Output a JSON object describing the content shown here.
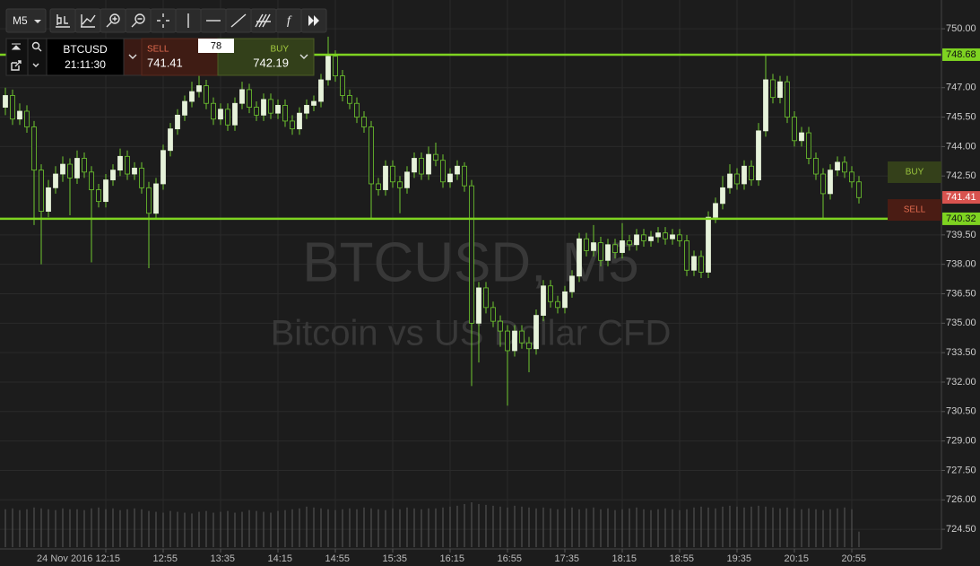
{
  "chart_data": {
    "type": "candlestick",
    "title": "BTCUSD, M5",
    "subtitle": "Bitcoin vs US Dollar CFD",
    "ylim": [
      723.5,
      751.1
    ],
    "yticks": [
      {
        "value": 750,
        "label": "750.00"
      },
      {
        "value": 747,
        "label": "747.00"
      },
      {
        "value": 745.5,
        "label": "745.50"
      },
      {
        "value": 744,
        "label": "744.00"
      },
      {
        "value": 742.5,
        "label": "742.50"
      },
      {
        "value": 739.5,
        "label": "739.50"
      },
      {
        "value": 738,
        "label": "738.00"
      },
      {
        "value": 736.5,
        "label": "736.50"
      },
      {
        "value": 735,
        "label": "735.00"
      },
      {
        "value": 733.5,
        "label": "733.50"
      },
      {
        "value": 732,
        "label": "732.00"
      },
      {
        "value": 730.5,
        "label": "730.50"
      },
      {
        "value": 729,
        "label": "729.00"
      },
      {
        "value": 727.5,
        "label": "727.50"
      },
      {
        "value": 726,
        "label": "726.00"
      },
      {
        "value": 724.5,
        "label": "724.50"
      }
    ],
    "xticks": [
      {
        "value": 14,
        "label": "24 Nov 2016 12:15"
      },
      {
        "value": 22,
        "label": "12:55"
      },
      {
        "value": 30,
        "label": "13:35"
      },
      {
        "value": 38,
        "label": "14:15"
      },
      {
        "value": 46,
        "label": "14:55"
      },
      {
        "value": 54,
        "label": "15:35"
      },
      {
        "value": 62,
        "label": "16:15"
      },
      {
        "value": 70,
        "label": "16:55"
      },
      {
        "value": 78,
        "label": "17:35"
      },
      {
        "value": 86,
        "label": "18:15"
      },
      {
        "value": 94,
        "label": "18:55"
      },
      {
        "value": 102,
        "label": "19:35"
      },
      {
        "value": 110,
        "label": "20:15"
      },
      {
        "value": 118,
        "label": "20:55"
      }
    ],
    "grid": true,
    "up_color": "#e6f2da",
    "down_color": "#1c1c1c",
    "wick_color": "#6fc92f",
    "level_color": "#7ed321",
    "volume_color": "#5a5a5a",
    "levels": [
      748.68,
      740.32
    ],
    "last_price": 741.41,
    "buy_label": "BUY",
    "sell_label": "SELL",
    "ohlc": [
      [
        746.0,
        747.0,
        745.6,
        746.6
      ],
      [
        746.6,
        746.9,
        745.1,
        745.4
      ],
      [
        745.4,
        746.2,
        745.1,
        745.8
      ],
      [
        745.8,
        746.1,
        744.7,
        745.0
      ],
      [
        745.0,
        745.3,
        740.0,
        742.8
      ],
      [
        742.8,
        743.1,
        738.0,
        740.7
      ],
      [
        740.7,
        742.3,
        740.4,
        741.9
      ],
      [
        741.9,
        743.0,
        741.6,
        742.6
      ],
      [
        742.6,
        743.5,
        742.2,
        743.1
      ],
      [
        743.1,
        743.4,
        740.5,
        742.4
      ],
      [
        742.4,
        743.8,
        742.1,
        743.4
      ],
      [
        743.4,
        743.7,
        742.4,
        742.7
      ],
      [
        742.7,
        743.0,
        738.1,
        741.8
      ],
      [
        741.8,
        742.1,
        740.9,
        741.2
      ],
      [
        741.2,
        742.6,
        740.9,
        742.3
      ],
      [
        742.3,
        743.1,
        742.0,
        742.8
      ],
      [
        742.8,
        743.9,
        742.5,
        743.5
      ],
      [
        743.5,
        743.8,
        742.3,
        742.6
      ],
      [
        742.6,
        743.2,
        742.3,
        742.9
      ],
      [
        742.9,
        743.2,
        741.6,
        741.9
      ],
      [
        741.9,
        742.2,
        737.8,
        740.6
      ],
      [
        740.6,
        742.4,
        740.3,
        742.1
      ],
      [
        742.1,
        744.1,
        741.8,
        743.8
      ],
      [
        743.8,
        745.2,
        743.5,
        744.9
      ],
      [
        744.9,
        745.9,
        744.6,
        745.6
      ],
      [
        745.6,
        746.6,
        745.3,
        746.3
      ],
      [
        746.3,
        747.3,
        746.0,
        746.8
      ],
      [
        746.8,
        747.6,
        746.5,
        747.1
      ],
      [
        747.1,
        747.4,
        745.9,
        746.2
      ],
      [
        746.2,
        746.5,
        745.1,
        745.4
      ],
      [
        745.4,
        746.2,
        745.1,
        745.9
      ],
      [
        745.9,
        746.2,
        744.8,
        745.1
      ],
      [
        745.1,
        746.5,
        744.8,
        746.2
      ],
      [
        746.2,
        747.3,
        745.9,
        746.9
      ],
      [
        746.9,
        747.2,
        745.7,
        746.0
      ],
      [
        746.0,
        746.3,
        745.3,
        745.6
      ],
      [
        745.6,
        746.7,
        745.3,
        746.4
      ],
      [
        746.4,
        746.7,
        745.4,
        745.7
      ],
      [
        745.7,
        746.4,
        745.4,
        746.1
      ],
      [
        746.1,
        746.4,
        745.0,
        745.3
      ],
      [
        745.3,
        745.6,
        744.6,
        744.9
      ],
      [
        744.9,
        746.0,
        744.6,
        745.7
      ],
      [
        745.7,
        746.4,
        745.4,
        746.1
      ],
      [
        746.1,
        746.6,
        745.8,
        746.3
      ],
      [
        746.3,
        747.7,
        746.0,
        747.4
      ],
      [
        747.4,
        749.6,
        747.1,
        748.6
      ],
      [
        748.6,
        748.9,
        747.3,
        747.6
      ],
      [
        747.6,
        747.9,
        746.3,
        746.6
      ],
      [
        746.6,
        746.9,
        745.9,
        746.2
      ],
      [
        746.2,
        746.5,
        745.2,
        745.5
      ],
      [
        745.5,
        745.8,
        744.7,
        745.0
      ],
      [
        745.0,
        745.3,
        740.3,
        742.1
      ],
      [
        742.1,
        742.4,
        741.5,
        741.8
      ],
      [
        741.8,
        743.3,
        741.5,
        743.0
      ],
      [
        743.0,
        743.3,
        741.9,
        742.2
      ],
      [
        742.2,
        742.5,
        740.6,
        741.9
      ],
      [
        741.9,
        743.0,
        741.6,
        742.7
      ],
      [
        742.7,
        743.7,
        742.4,
        743.4
      ],
      [
        743.4,
        743.7,
        742.3,
        742.6
      ],
      [
        742.6,
        744.0,
        742.3,
        743.6
      ],
      [
        743.6,
        744.2,
        743.0,
        743.3
      ],
      [
        743.3,
        743.6,
        741.9,
        742.2
      ],
      [
        742.2,
        742.9,
        741.9,
        742.6
      ],
      [
        742.6,
        743.3,
        742.3,
        743.0
      ],
      [
        743.0,
        743.2,
        741.7,
        742.0
      ],
      [
        742.0,
        742.3,
        731.8,
        735.0
      ],
      [
        735.0,
        737.1,
        733.0,
        736.8
      ],
      [
        736.8,
        737.1,
        735.5,
        735.8
      ],
      [
        735.8,
        736.1,
        734.8,
        735.1
      ],
      [
        735.1,
        735.4,
        733.8,
        734.6
      ],
      [
        734.6,
        734.9,
        730.8,
        733.6
      ],
      [
        733.6,
        734.9,
        733.3,
        734.6
      ],
      [
        734.6,
        734.9,
        733.7,
        734.0
      ],
      [
        734.0,
        734.3,
        732.5,
        733.7
      ],
      [
        733.7,
        735.7,
        733.4,
        735.4
      ],
      [
        735.4,
        737.2,
        735.1,
        736.9
      ],
      [
        736.9,
        737.2,
        735.8,
        736.1
      ],
      [
        736.1,
        736.4,
        735.5,
        735.8
      ],
      [
        735.8,
        736.9,
        735.5,
        736.6
      ],
      [
        736.6,
        737.7,
        736.3,
        737.4
      ],
      [
        737.4,
        739.6,
        737.1,
        739.3
      ],
      [
        739.3,
        739.6,
        738.4,
        738.7
      ],
      [
        738.7,
        740.0,
        738.4,
        739.1
      ],
      [
        739.1,
        739.4,
        737.9,
        738.2
      ],
      [
        738.2,
        739.3,
        737.9,
        739.0
      ],
      [
        739.0,
        739.3,
        738.3,
        738.6
      ],
      [
        738.6,
        740.1,
        738.3,
        739.2
      ],
      [
        739.2,
        739.5,
        738.7,
        739.0
      ],
      [
        739.0,
        739.8,
        738.7,
        739.5
      ],
      [
        739.5,
        739.8,
        738.9,
        739.2
      ],
      [
        739.2,
        739.7,
        738.9,
        739.4
      ],
      [
        739.4,
        739.9,
        739.1,
        739.6
      ],
      [
        739.6,
        739.9,
        739.0,
        739.3
      ],
      [
        739.3,
        739.8,
        739.0,
        739.5
      ],
      [
        739.5,
        739.8,
        738.9,
        739.2
      ],
      [
        739.2,
        739.5,
        737.4,
        737.7
      ],
      [
        737.7,
        738.7,
        737.4,
        738.4
      ],
      [
        738.4,
        738.7,
        737.3,
        737.6
      ],
      [
        737.6,
        740.7,
        737.3,
        740.4
      ],
      [
        740.4,
        741.4,
        740.1,
        741.1
      ],
      [
        741.1,
        742.5,
        740.8,
        741.9
      ],
      [
        741.9,
        743.1,
        741.6,
        742.6
      ],
      [
        742.6,
        742.9,
        741.8,
        742.1
      ],
      [
        742.1,
        743.3,
        741.8,
        743.0
      ],
      [
        743.0,
        743.3,
        742.0,
        742.3
      ],
      [
        742.3,
        745.2,
        742.0,
        744.8
      ],
      [
        744.8,
        748.7,
        744.5,
        747.4
      ],
      [
        747.4,
        747.7,
        746.2,
        746.5
      ],
      [
        746.5,
        747.6,
        746.2,
        747.3
      ],
      [
        747.3,
        747.6,
        745.2,
        745.5
      ],
      [
        745.5,
        745.8,
        744.0,
        744.3
      ],
      [
        744.3,
        745.0,
        744.0,
        744.7
      ],
      [
        744.7,
        745.0,
        743.1,
        743.4
      ],
      [
        743.4,
        743.7,
        742.3,
        742.6
      ],
      [
        742.6,
        742.9,
        740.3,
        741.6
      ],
      [
        741.6,
        743.1,
        741.3,
        742.8
      ],
      [
        742.8,
        743.5,
        742.5,
        743.2
      ],
      [
        743.2,
        743.5,
        742.4,
        742.7
      ],
      [
        742.7,
        743.0,
        741.9,
        742.2
      ],
      [
        742.2,
        742.5,
        741.1,
        741.4
      ]
    ],
    "volumes": [
      44,
      45,
      43,
      44,
      46,
      45,
      44,
      43,
      45,
      44,
      44,
      43,
      45,
      46,
      44,
      45,
      43,
      44,
      45,
      44,
      42,
      41,
      40,
      42,
      41,
      40,
      39,
      41,
      42,
      40,
      41,
      42,
      40,
      41,
      43,
      42,
      41,
      40,
      42,
      43,
      44,
      45,
      47,
      46,
      45,
      44,
      43,
      44,
      45,
      44,
      46,
      45,
      44,
      43,
      45,
      44,
      46,
      45,
      44,
      45,
      45,
      46,
      47,
      48,
      50,
      52,
      50,
      49,
      48,
      47,
      46,
      48,
      47,
      46,
      45,
      46,
      45,
      44,
      45,
      46,
      44,
      45,
      46,
      44,
      45,
      43,
      44,
      45,
      46,
      44,
      43,
      44,
      45,
      44,
      43,
      44,
      46,
      47,
      46,
      45,
      47,
      48,
      47,
      46,
      47,
      48,
      47,
      46,
      45,
      46,
      45,
      44,
      45,
      44,
      43,
      44,
      45,
      46,
      44,
      18
    ]
  },
  "toolbar": {
    "timeframe": "M5",
    "function_icon": "f"
  },
  "ticket": {
    "symbol": "BTCUSD",
    "time": "21:11:30",
    "sell_label": "SELL",
    "sell": 741.41,
    "spread": 78,
    "buy_label": "BUY",
    "buy": 742.19
  }
}
